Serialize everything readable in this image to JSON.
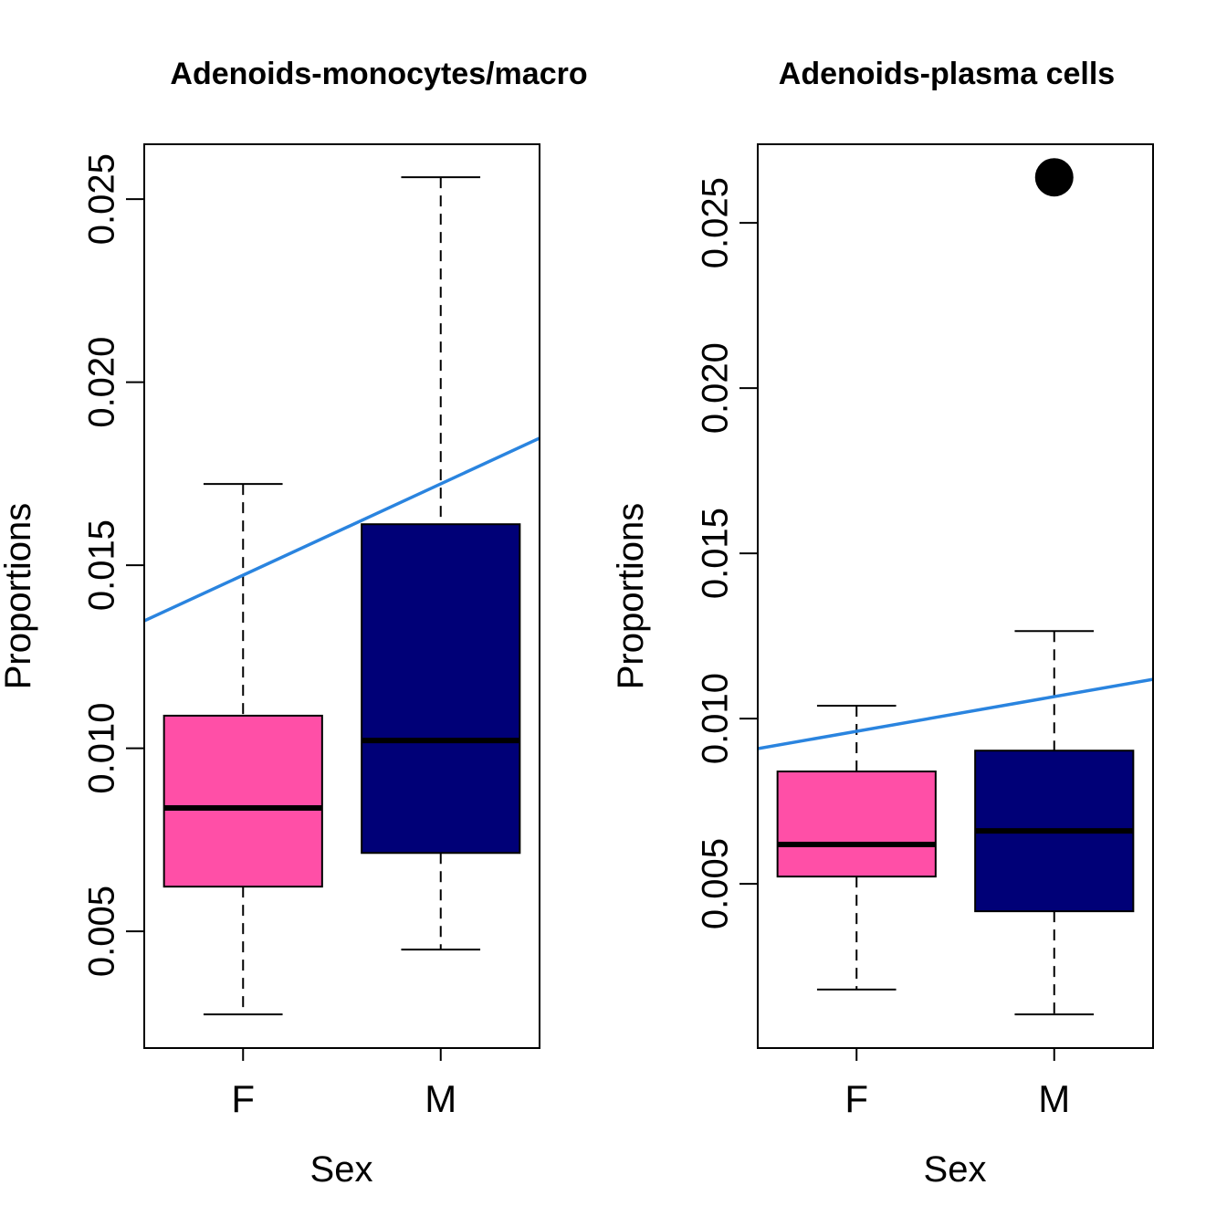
{
  "chart_data": [
    {
      "type": "box",
      "title": "Adenoids-monocytes/macro",
      "xlabel": "Sex",
      "ylabel": "Proportions",
      "categories": [
        "F",
        "M"
      ],
      "ylim": [
        0.00181,
        0.0265
      ],
      "yticks": [
        0.005,
        0.01,
        0.015,
        0.02,
        0.025
      ],
      "ytick_labels": [
        "0.005",
        "0.010",
        "0.015",
        "0.020",
        "0.025"
      ],
      "boxes": [
        {
          "name": "F",
          "color": "#FF4FA7",
          "whisker_low": 0.00273,
          "q1": 0.00622,
          "median": 0.00837,
          "q3": 0.01089,
          "whisker_high": 0.01722,
          "outliers": []
        },
        {
          "name": "M",
          "color": "#000077",
          "whisker_low": 0.0045,
          "q1": 0.00714,
          "median": 0.01021,
          "q3": 0.01612,
          "whisker_high": 0.0256,
          "outliers": []
        }
      ],
      "trend_line": {
        "color": "#2A84DF",
        "y_at_left_edge": 0.01348,
        "y_at_right_edge": 0.01847
      },
      "grid": false,
      "legend": "none"
    },
    {
      "type": "box",
      "title": "Adenoids-plasma cells",
      "xlabel": "Sex",
      "ylabel": "Proportions",
      "categories": [
        "F",
        "M"
      ],
      "ylim": [
        3e-05,
        0.02738
      ],
      "yticks": [
        0.005,
        0.01,
        0.015,
        0.02,
        0.025
      ],
      "ytick_labels": [
        "0.005",
        "0.010",
        "0.015",
        "0.020",
        "0.025"
      ],
      "boxes": [
        {
          "name": "F",
          "color": "#FF4FA7",
          "whisker_low": 0.0018,
          "q1": 0.00522,
          "median": 0.00619,
          "q3": 0.0084,
          "whisker_high": 0.01039,
          "outliers": []
        },
        {
          "name": "M",
          "color": "#000077",
          "whisker_low": 0.00105,
          "q1": 0.00417,
          "median": 0.0066,
          "q3": 0.00903,
          "whisker_high": 0.01265,
          "outliers": [
            0.02638
          ]
        }
      ],
      "trend_line": {
        "color": "#2A84DF",
        "y_at_left_edge": 0.00909,
        "y_at_right_edge": 0.01119
      },
      "grid": false,
      "legend": "none"
    }
  ]
}
